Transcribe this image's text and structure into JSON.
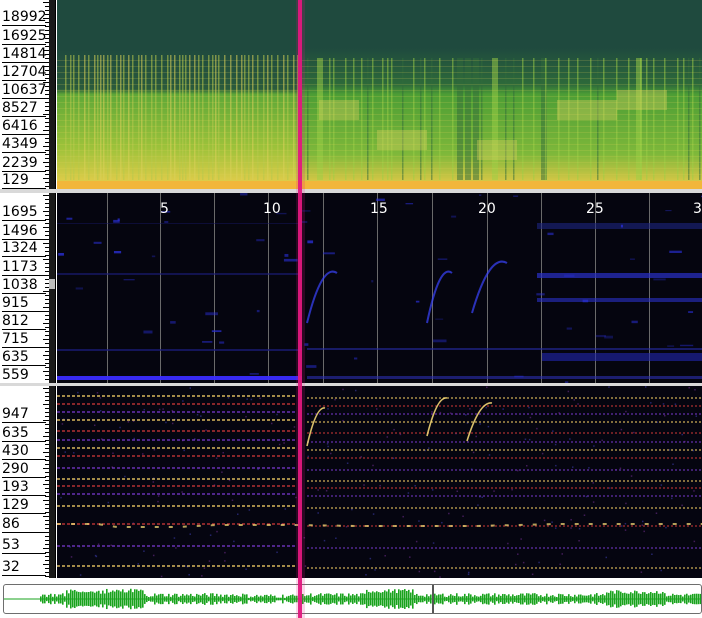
{
  "panes": {
    "top": {
      "name": "spectrogram",
      "ticks": [
        "18992",
        "16925",
        "14814",
        "12704",
        "10637",
        "8527",
        "6416",
        "4349",
        "2239",
        "129"
      ]
    },
    "middle": {
      "name": "melodic-range-spectrogram",
      "ticks": [
        "1695",
        "1496",
        "1324",
        "1173",
        "1038",
        "915",
        "812",
        "715",
        "635",
        "559"
      ],
      "time_labels": [
        "5",
        "10",
        "15",
        "20",
        "25",
        "3"
      ]
    },
    "bottom": {
      "name": "peak-frequency-spectrogram",
      "ticks": [
        "947",
        "635",
        "430",
        "290",
        "193",
        "129",
        "86",
        "53",
        "32"
      ]
    }
  },
  "playhead": {
    "position_fraction": 0.43
  },
  "colors": {
    "playhead": "#e0187e",
    "spectro_top_low": "#e6c84a",
    "spectro_top_mid": "#4ea83c",
    "spectro_top_bg": "#1f4a3e",
    "middle_bg": "#05050f",
    "middle_signal": "#2a2fd6",
    "bottom_bg": "#050510",
    "bottom_peak_hi": "#ffe27a",
    "bottom_peak_mid": "#d23a3a",
    "waveform": "#19a31d"
  }
}
